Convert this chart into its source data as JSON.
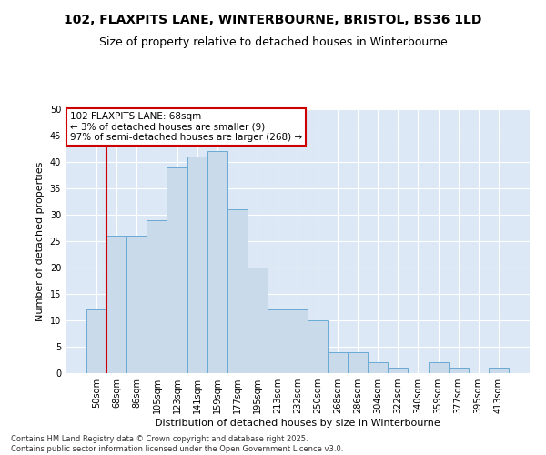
{
  "title_line1": "102, FLAXPITS LANE, WINTERBOURNE, BRISTOL, BS36 1LD",
  "title_line2": "Size of property relative to detached houses in Winterbourne",
  "xlabel": "Distribution of detached houses by size in Winterbourne",
  "ylabel": "Number of detached properties",
  "categories": [
    "50sqm",
    "68sqm",
    "86sqm",
    "105sqm",
    "123sqm",
    "141sqm",
    "159sqm",
    "177sqm",
    "195sqm",
    "213sqm",
    "232sqm",
    "250sqm",
    "268sqm",
    "286sqm",
    "304sqm",
    "322sqm",
    "340sqm",
    "359sqm",
    "377sqm",
    "395sqm",
    "413sqm"
  ],
  "values": [
    12,
    26,
    26,
    29,
    39,
    41,
    42,
    31,
    20,
    12,
    12,
    10,
    4,
    4,
    2,
    1,
    0,
    2,
    1,
    0,
    1
  ],
  "bar_color": "#c9daea",
  "bar_edge_color": "#6aaad4",
  "highlight_index": 1,
  "highlight_color": "#cc0000",
  "ylim": [
    0,
    50
  ],
  "yticks": [
    0,
    5,
    10,
    15,
    20,
    25,
    30,
    35,
    40,
    45,
    50
  ],
  "annotation_title": "102 FLAXPITS LANE: 68sqm",
  "annotation_line1": "← 3% of detached houses are smaller (9)",
  "annotation_line2": "97% of semi-detached houses are larger (268) →",
  "annotation_box_facecolor": "#ffffff",
  "annotation_box_edgecolor": "#cc0000",
  "footer_line1": "Contains HM Land Registry data © Crown copyright and database right 2025.",
  "footer_line2": "Contains public sector information licensed under the Open Government Licence v3.0.",
  "fig_bg_color": "#ffffff",
  "plot_bg_color": "#dce8f5",
  "grid_color": "#ffffff",
  "title1_fontsize": 10,
  "title2_fontsize": 9,
  "ylabel_fontsize": 8,
  "xlabel_fontsize": 8,
  "tick_fontsize": 7,
  "footer_fontsize": 6,
  "annot_fontsize": 7.5
}
